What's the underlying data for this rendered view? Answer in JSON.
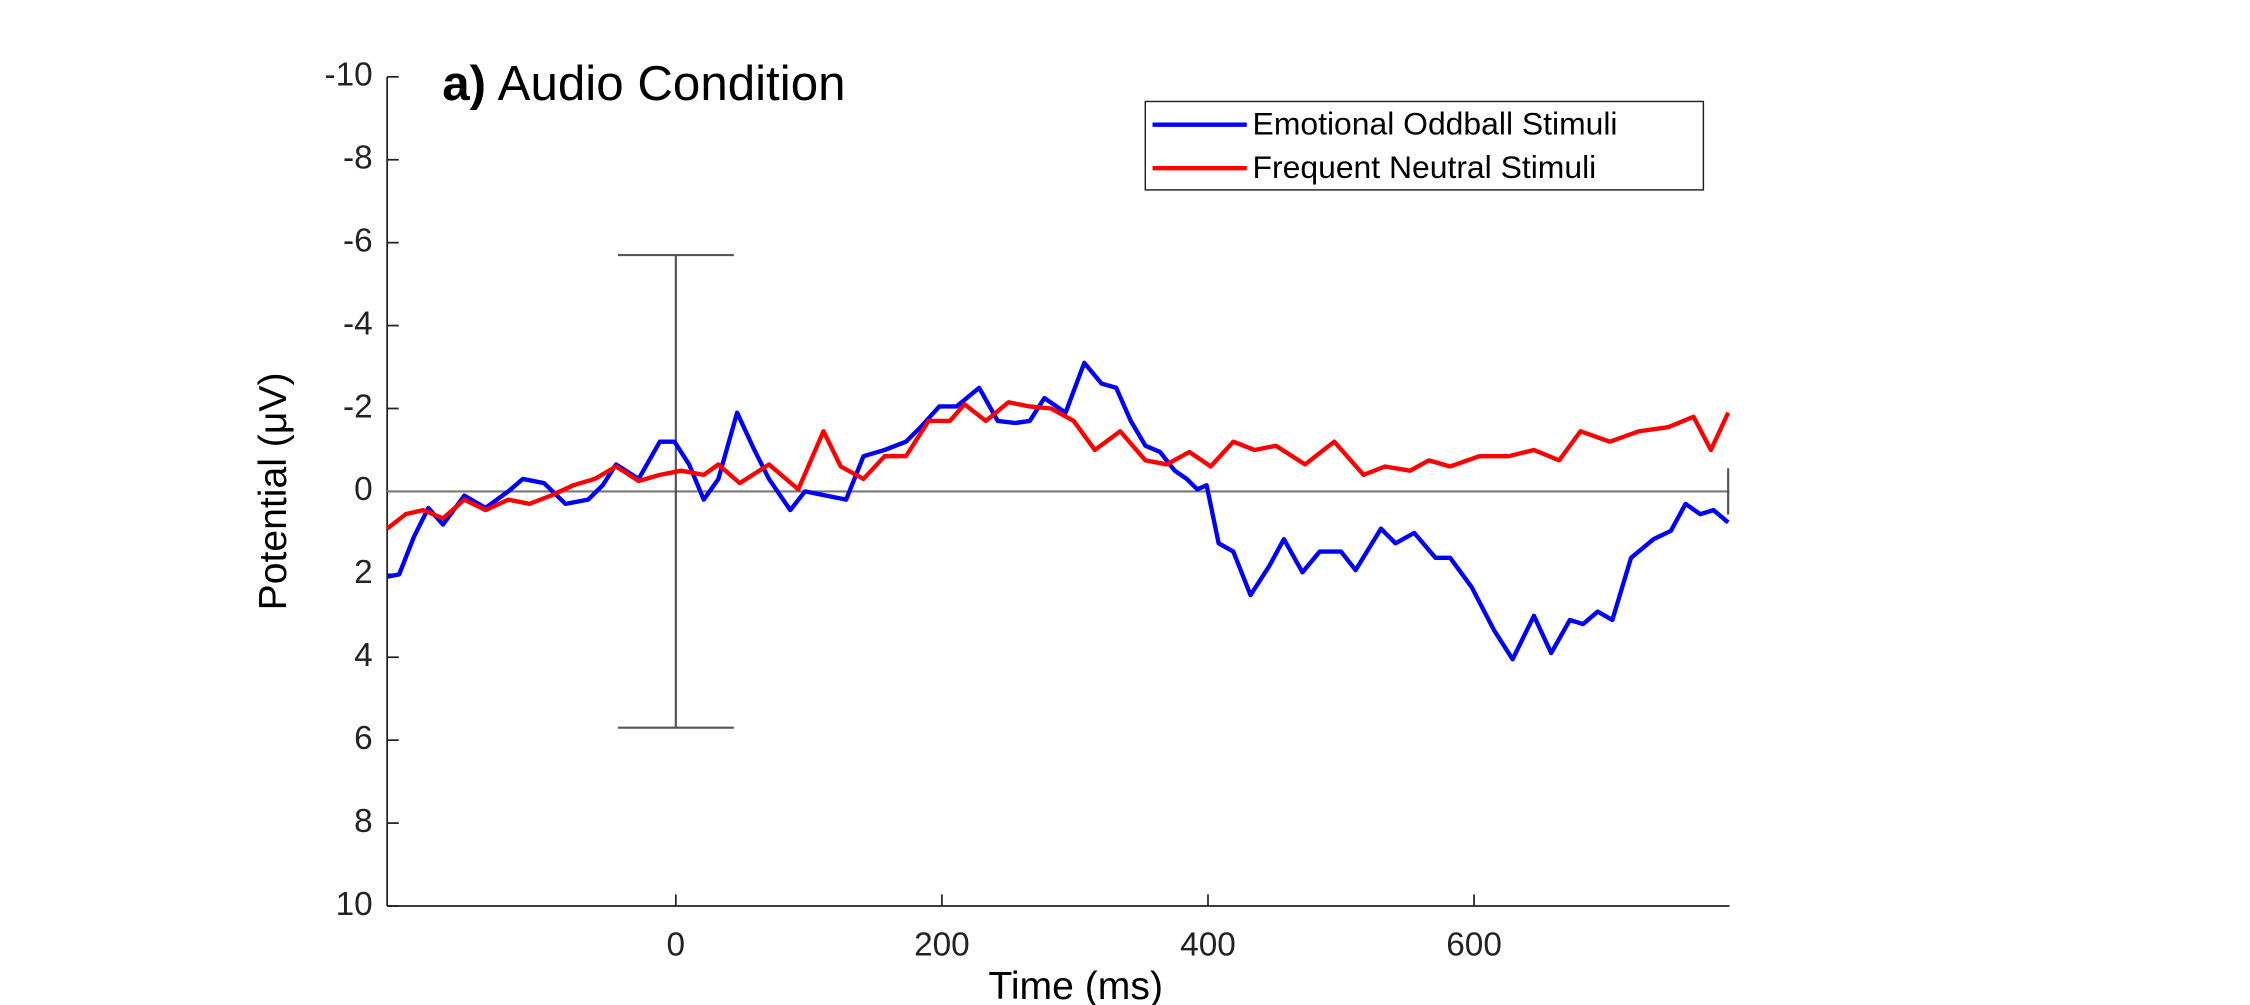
{
  "chart_data": {
    "type": "line",
    "title_label": "a)",
    "title": "Audio Condition",
    "xlabel": "Time (ms)",
    "ylabel": "Potential (μV)",
    "xlim": [
      -217,
      792
    ],
    "ylim": [
      -10,
      10
    ],
    "y_reversed": true,
    "xticks": [
      0,
      200,
      400,
      600
    ],
    "yticks": [
      -10,
      -8,
      -6,
      -4,
      -2,
      0,
      2,
      4,
      6,
      8,
      10
    ],
    "hline": 0,
    "legend": "upper right",
    "series": [
      {
        "name": "Emotional Oddball Stimuli",
        "color": "#0000ff",
        "x": [
          -217,
          -208,
          -197,
          -186,
          -175,
          -159,
          -143,
          -126,
          -115,
          -99,
          -83,
          -66,
          -55,
          -45,
          -28,
          -12,
          -1,
          10,
          21,
          32,
          46,
          59,
          70,
          86,
          97,
          113,
          128,
          141,
          157,
          173,
          184,
          198,
          211,
          228,
          242,
          255,
          266,
          277,
          293,
          307,
          320,
          331,
          342,
          353,
          364,
          375,
          384,
          392,
          399,
          408,
          419,
          432,
          446,
          457,
          471,
          484,
          500,
          511,
          530,
          541,
          555,
          571,
          582,
          598,
          615,
          629,
          645,
          658,
          672,
          682,
          693,
          704,
          718,
          735,
          748,
          759,
          770,
          780,
          791
        ],
        "values": [
          2.06,
          2.0,
          1.1,
          0.4,
          0.8,
          0.1,
          0.4,
          0.0,
          -0.3,
          -0.2,
          0.3,
          0.2,
          -0.15,
          -0.65,
          -0.3,
          -1.2,
          -1.2,
          -0.65,
          0.2,
          -0.3,
          -1.9,
          -1.0,
          -0.3,
          0.45,
          0.0,
          0.1,
          0.2,
          -0.85,
          -1.0,
          -1.2,
          -1.55,
          -2.05,
          -2.05,
          -2.5,
          -1.7,
          -1.65,
          -1.7,
          -2.25,
          -1.9,
          -3.1,
          -2.6,
          -2.5,
          -1.7,
          -1.1,
          -0.95,
          -0.5,
          -0.3,
          -0.05,
          -0.15,
          1.25,
          1.45,
          2.5,
          1.8,
          1.15,
          1.95,
          1.45,
          1.45,
          1.9,
          0.9,
          1.25,
          1.0,
          1.6,
          1.6,
          2.3,
          3.35,
          4.05,
          3.0,
          3.9,
          3.1,
          3.2,
          2.9,
          3.1,
          1.6,
          1.15,
          0.95,
          0.3,
          0.55,
          0.45,
          0.75
        ]
      },
      {
        "name": "Frequent Neutral Stimuli",
        "color": "#ff0000",
        "x": [
          -217,
          -203,
          -190,
          -175,
          -159,
          -143,
          -126,
          -110,
          -94,
          -77,
          -61,
          -45,
          -28,
          -12,
          4,
          21,
          32,
          48,
          70,
          92,
          111,
          124,
          141,
          157,
          173,
          190,
          206,
          217,
          233,
          250,
          266,
          282,
          299,
          315,
          334,
          353,
          369,
          386,
          402,
          419,
          435,
          451,
          473,
          495,
          517,
          533,
          552,
          566,
          582,
          604,
          626,
          645,
          664,
          680,
          702,
          724,
          746,
          765,
          778,
          791
        ],
        "values": [
          0.9,
          0.55,
          0.45,
          0.65,
          0.2,
          0.45,
          0.2,
          0.3,
          0.1,
          -0.15,
          -0.3,
          -0.6,
          -0.25,
          -0.4,
          -0.5,
          -0.4,
          -0.65,
          -0.2,
          -0.65,
          -0.05,
          -1.45,
          -0.6,
          -0.3,
          -0.85,
          -0.85,
          -1.7,
          -1.7,
          -2.1,
          -1.7,
          -2.15,
          -2.05,
          -2.0,
          -1.7,
          -1.0,
          -1.45,
          -0.75,
          -0.65,
          -0.95,
          -0.6,
          -1.2,
          -1.0,
          -1.1,
          -0.65,
          -1.2,
          -0.4,
          -0.6,
          -0.5,
          -0.75,
          -0.6,
          -0.85,
          -0.85,
          -1.0,
          -0.75,
          -1.45,
          -1.2,
          -1.45,
          -1.55,
          -1.8,
          -1.0,
          -1.9
        ]
      }
    ],
    "error_bars": [
      {
        "x": 0,
        "value": 0,
        "error": 5.7
      },
      {
        "x": 791,
        "value": 0,
        "error": 0.56
      }
    ]
  }
}
